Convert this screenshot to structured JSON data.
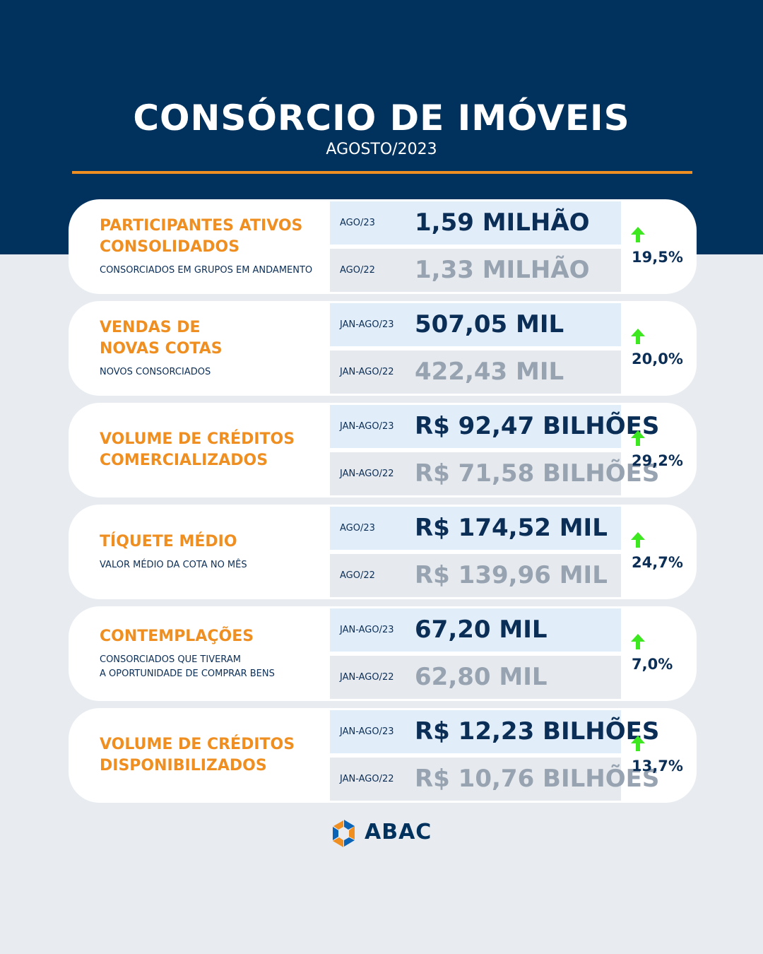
{
  "header": {
    "title": "CONSÓRCIO DE IMÓVEIS",
    "subtitle": "AGOSTO/2023"
  },
  "colors": {
    "navy": "#01325d",
    "orange": "#ef8f22",
    "arrow_green": "#3ee820",
    "muted_value": "#97a3b0"
  },
  "cards": [
    {
      "title": "PARTICIPANTES ATIVOS CONSOLIDADOS",
      "title_lines": [
        "PARTICIPANTES ATIVOS",
        "CONSOLIDADOS"
      ],
      "description_lines": [
        "CONSORCIADOS EM GRUPOS EM ANDAMENTO"
      ],
      "current": {
        "period": "AGO/23",
        "value": "1,59 MILHÃO"
      },
      "previous": {
        "period": "AGO/22",
        "value": "1,33 MILHÃO"
      },
      "change": "19,5%",
      "trend_icon": "arrow-up-icon"
    },
    {
      "title": "VENDAS DE NOVAS COTAS",
      "title_lines": [
        "VENDAS DE",
        "NOVAS COTAS"
      ],
      "description_lines": [
        "NOVOS CONSORCIADOS"
      ],
      "current": {
        "period": "JAN-AGO/23",
        "value": "507,05 MIL"
      },
      "previous": {
        "period": "JAN-AGO/22",
        "value": "422,43 MIL"
      },
      "change": "20,0%",
      "trend_icon": "arrow-up-icon"
    },
    {
      "title": "VOLUME DE CRÉDITOS COMERCIALIZADOS",
      "title_lines": [
        "VOLUME DE CRÉDITOS",
        "COMERCIALIZADOS"
      ],
      "description_lines": [],
      "current": {
        "period": "JAN-AGO/23",
        "value": "R$ 92,47 BILHÕES"
      },
      "previous": {
        "period": "JAN-AGO/22",
        "value": "R$ 71,58 BILHÕES"
      },
      "change": "29,2%",
      "trend_icon": "arrow-up-icon"
    },
    {
      "title": "TÍQUETE MÉDIO",
      "title_lines": [
        "TÍQUETE MÉDIO"
      ],
      "description_lines": [
        "VALOR MÉDIO DA COTA NO MÊS"
      ],
      "current": {
        "period": "AGO/23",
        "value": "R$ 174,52 MIL"
      },
      "previous": {
        "period": "AGO/22",
        "value": "R$ 139,96 MIL"
      },
      "change": "24,7%",
      "trend_icon": "arrow-up-icon"
    },
    {
      "title": "CONTEMPLAÇÕES",
      "title_lines": [
        "CONTEMPLAÇÕES"
      ],
      "description_lines": [
        "CONSORCIADOS QUE TIVERAM",
        "A OPORTUNIDADE DE COMPRAR BENS"
      ],
      "current": {
        "period": "JAN-AGO/23",
        "value": "67,20 MIL"
      },
      "previous": {
        "period": "JAN-AGO/22",
        "value": "62,80 MIL"
      },
      "change": "7,0%",
      "trend_icon": "arrow-up-icon"
    },
    {
      "title": "VOLUME DE CRÉDITOS DISPONIBILIZADOS",
      "title_lines": [
        "VOLUME DE CRÉDITOS",
        "DISPONIBILIZADOS"
      ],
      "description_lines": [],
      "current": {
        "period": "JAN-AGO/23",
        "value": "R$ 12,23 BILHÕES"
      },
      "previous": {
        "period": "JAN-AGO/22",
        "value": "R$ 10,76 BILHÕES"
      },
      "change": "13,7%",
      "trend_icon": "arrow-up-icon"
    }
  ],
  "footer": {
    "logo_text": "ABAC",
    "logo_icon": "abac-logo-icon"
  }
}
